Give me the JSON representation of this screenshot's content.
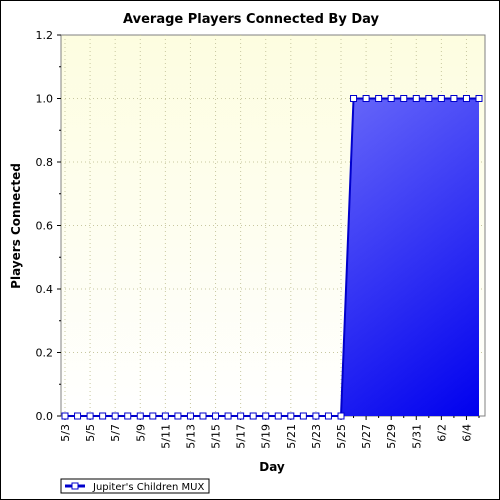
{
  "chart_data": {
    "type": "area",
    "title": "Average Players Connected By Day",
    "xlabel": "Day",
    "ylabel": "Players Connected",
    "ylim": [
      0,
      1.2
    ],
    "yticks": [
      "0.0",
      "0.2",
      "0.4",
      "0.6",
      "0.8",
      "1.0",
      "1.2"
    ],
    "grid": true,
    "legend_position": "bottom-left",
    "x_labels_shown": [
      "5/3",
      "5/5",
      "5/7",
      "5/9",
      "5/11",
      "5/13",
      "5/15",
      "5/17",
      "5/19",
      "5/21",
      "5/23",
      "5/25",
      "5/27",
      "5/29",
      "5/31",
      "6/2",
      "6/4"
    ],
    "categories": [
      "5/3",
      "5/4",
      "5/5",
      "5/6",
      "5/7",
      "5/8",
      "5/9",
      "5/10",
      "5/11",
      "5/12",
      "5/13",
      "5/14",
      "5/15",
      "5/16",
      "5/17",
      "5/18",
      "5/19",
      "5/20",
      "5/21",
      "5/22",
      "5/23",
      "5/24",
      "5/25",
      "5/26",
      "5/27",
      "5/28",
      "5/29",
      "5/30",
      "5/31",
      "6/1",
      "6/2",
      "6/3",
      "6/4",
      "6/5"
    ],
    "series": [
      {
        "name": "Jupiter's Children MUX",
        "values": [
          0,
          0,
          0,
          0,
          0,
          0,
          0,
          0,
          0,
          0,
          0,
          0,
          0,
          0,
          0,
          0,
          0,
          0,
          0,
          0,
          0,
          0,
          0,
          1,
          1,
          1,
          1,
          1,
          1,
          1,
          1,
          1,
          1,
          1
        ]
      }
    ],
    "colors": {
      "plot_bg_top": "#fdfde0",
      "plot_bg_bottom": "#ffffff",
      "area_top": "#9a9aff",
      "area_bottom": "#0000ee",
      "line": "#0000cc"
    }
  }
}
